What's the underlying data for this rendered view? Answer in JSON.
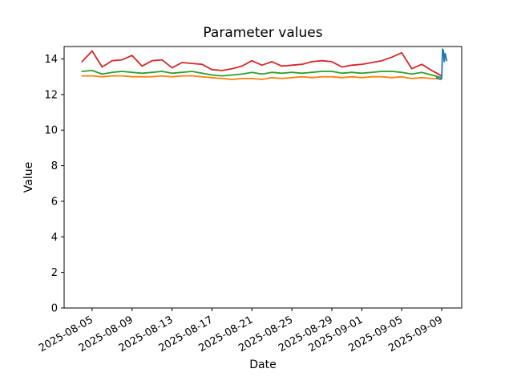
{
  "chart_data": {
    "type": "line",
    "title": "Parameter values",
    "xlabel": "Date",
    "ylabel": "Value",
    "grid": false,
    "legend": "none",
    "background_color": "#ffffff",
    "axis_color": "#000000",
    "start_date": "2025-08-04",
    "x_unit": "days since 2025-08-04",
    "xlim": [
      -1.8,
      38.0
    ],
    "ylim": [
      0,
      14.7
    ],
    "y_ticks": [
      0,
      2,
      4,
      6,
      8,
      10,
      12,
      14
    ],
    "x_ticks": [
      {
        "day": 1,
        "label": "2025-08-05"
      },
      {
        "day": 5,
        "label": "2025-08-09"
      },
      {
        "day": 9,
        "label": "2025-08-13"
      },
      {
        "day": 13,
        "label": "2025-08-17"
      },
      {
        "day": 17,
        "label": "2025-08-21"
      },
      {
        "day": 21,
        "label": "2025-08-25"
      },
      {
        "day": 25,
        "label": "2025-08-29"
      },
      {
        "day": 28,
        "label": "2025-09-01"
      },
      {
        "day": 32,
        "label": "2025-09-05"
      },
      {
        "day": 36,
        "label": "2025-09-09"
      }
    ],
    "series": [
      {
        "name": "orange-series",
        "color": "#ff7f0e",
        "x": [
          0,
          1,
          2,
          3,
          4,
          5,
          6,
          7,
          8,
          9,
          10,
          11,
          12,
          13,
          14,
          15,
          16,
          17,
          18,
          19,
          20,
          21,
          22,
          23,
          24,
          25,
          26,
          27,
          28,
          29,
          30,
          31,
          32,
          33,
          34,
          35,
          36
        ],
        "values": [
          13.05,
          13.05,
          13.0,
          13.05,
          13.05,
          13.0,
          13.0,
          13.0,
          13.05,
          13.0,
          13.05,
          13.05,
          13.0,
          12.95,
          12.9,
          12.85,
          12.9,
          12.9,
          12.85,
          12.95,
          12.9,
          12.95,
          13.0,
          12.95,
          13.0,
          13.0,
          12.95,
          13.0,
          12.95,
          13.0,
          13.0,
          12.95,
          13.0,
          12.9,
          12.95,
          12.9,
          12.88
        ]
      },
      {
        "name": "green-series",
        "color": "#2ca02c",
        "x": [
          0,
          1,
          2,
          3,
          4,
          5,
          6,
          7,
          8,
          9,
          10,
          11,
          12,
          13,
          14,
          15,
          16,
          17,
          18,
          19,
          20,
          21,
          22,
          23,
          24,
          25,
          26,
          27,
          28,
          29,
          30,
          31,
          32,
          33,
          34,
          35,
          36
        ],
        "values": [
          13.3,
          13.35,
          13.15,
          13.25,
          13.3,
          13.25,
          13.2,
          13.25,
          13.3,
          13.2,
          13.25,
          13.3,
          13.2,
          13.1,
          13.05,
          13.1,
          13.15,
          13.25,
          13.15,
          13.25,
          13.2,
          13.25,
          13.2,
          13.25,
          13.3,
          13.3,
          13.2,
          13.25,
          13.2,
          13.25,
          13.3,
          13.3,
          13.25,
          13.15,
          13.25,
          13.1,
          12.95
        ]
      },
      {
        "name": "red-series",
        "color": "#d62728",
        "x": [
          0,
          1,
          2,
          3,
          4,
          5,
          6,
          7,
          8,
          9,
          10,
          11,
          12,
          13,
          14,
          15,
          16,
          17,
          18,
          19,
          20,
          21,
          22,
          23,
          24,
          25,
          26,
          27,
          28,
          29,
          30,
          31,
          32,
          33,
          34,
          35,
          36
        ],
        "values": [
          13.85,
          14.45,
          13.55,
          13.9,
          13.95,
          14.2,
          13.6,
          13.9,
          13.95,
          13.5,
          13.8,
          13.75,
          13.7,
          13.4,
          13.35,
          13.45,
          13.6,
          13.9,
          13.65,
          13.85,
          13.6,
          13.65,
          13.7,
          13.85,
          13.9,
          13.85,
          13.55,
          13.65,
          13.7,
          13.8,
          13.9,
          14.1,
          14.35,
          13.45,
          13.7,
          13.35,
          13.05
        ]
      },
      {
        "name": "blue-series",
        "color": "#1f77b4",
        "x": [
          35.5,
          35.85,
          36.0,
          36.08,
          36.18,
          36.25,
          36.35,
          36.5
        ],
        "values": [
          12.95,
          12.85,
          12.9,
          14.55,
          14.45,
          13.85,
          14.3,
          13.9
        ]
      }
    ]
  }
}
